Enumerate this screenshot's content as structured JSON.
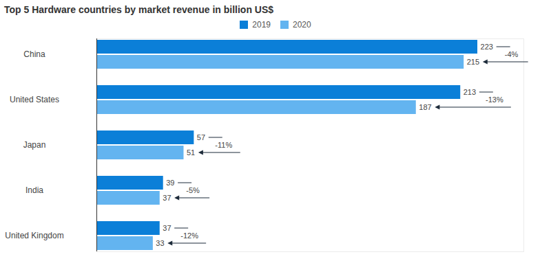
{
  "chart_data": {
    "type": "bar",
    "orientation": "horizontal",
    "title": "Top 5 Hardware countries by market revenue in billion US$",
    "categories": [
      "China",
      "United States",
      "Japan",
      "India",
      "United Kingdom"
    ],
    "series": [
      {
        "name": "2019",
        "color": "#0b7fd8",
        "values": [
          223,
          213,
          57,
          39,
          37
        ]
      },
      {
        "name": "2020",
        "color": "#63b4f0",
        "values": [
          215,
          187,
          51,
          37,
          33
        ]
      }
    ],
    "annotations": [
      "-4%",
      "-13%",
      "-11%",
      "-5%",
      "-12%"
    ],
    "xlim": [
      0,
      250
    ],
    "data_labels": true,
    "tick_labels": false,
    "legend": "top"
  }
}
